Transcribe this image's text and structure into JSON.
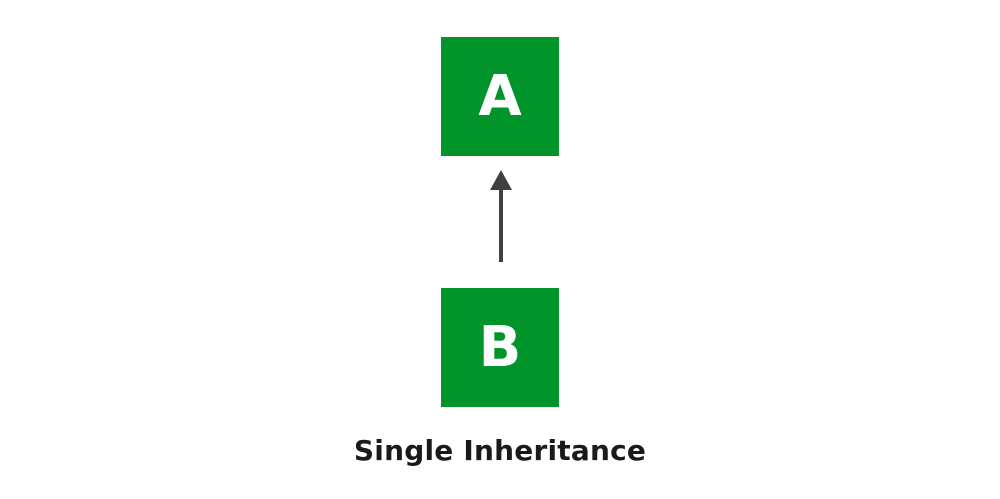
{
  "diagram": {
    "parent": {
      "label": "A"
    },
    "child": {
      "label": "B"
    },
    "caption": "Single Inheritance",
    "colors": {
      "node_fill": "#00942a",
      "node_text": "#ffffff",
      "arrow": "#404040",
      "caption_text": "#1a1a1a",
      "background": "#ffffff"
    }
  }
}
